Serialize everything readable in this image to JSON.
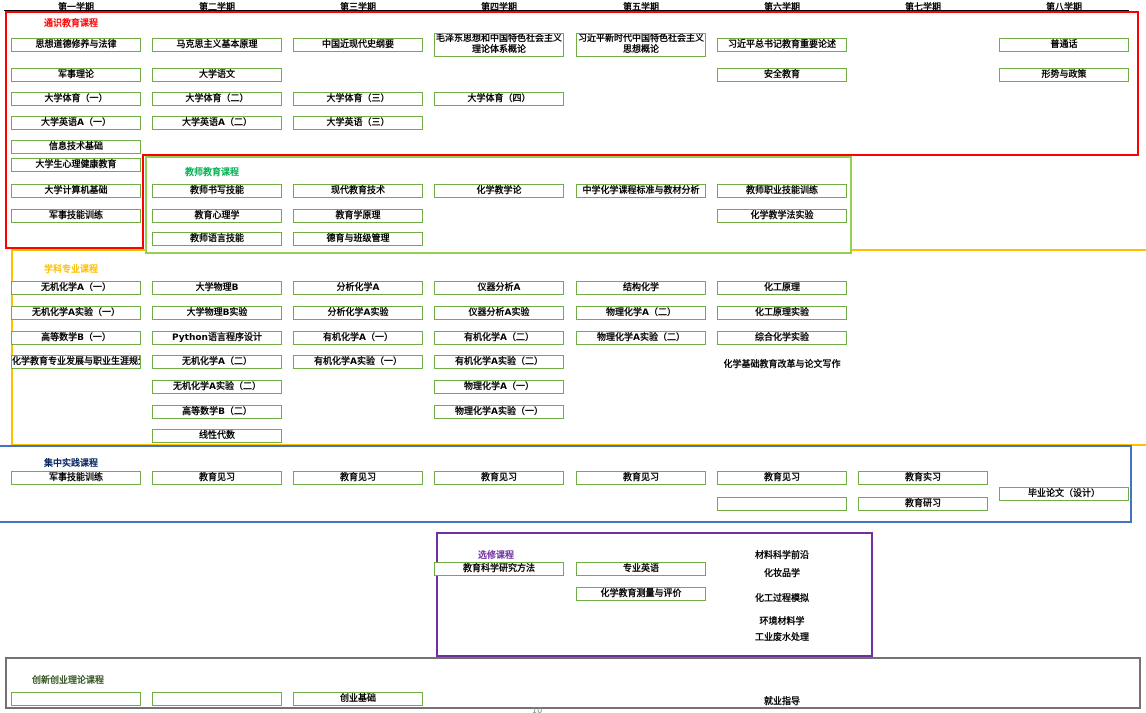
{
  "semesters": [
    "第一学期",
    "第二学期",
    "第三学期",
    "第四学期",
    "第五学期",
    "第六学期",
    "第七学期",
    "第八学期"
  ],
  "colors": {
    "general": "#ff0000",
    "teacher": "#92d050",
    "subject": "#ffc000",
    "practice": "#4472c4",
    "elective": "#7030a0",
    "innovation": "#767171",
    "cell_border": "#70ad47"
  },
  "sections": [
    {
      "id": "general",
      "title": "通识教育课程",
      "title_color": "#ff0000",
      "columns": [
        [
          "思想道德修养与法律",
          "军事理论",
          "大学体育（一）",
          "大学英语A（一）",
          "信息技术基础",
          "大学生心理健康教育",
          "大学计算机基础",
          "军事技能训练"
        ],
        [
          "马克思主义基本原理",
          "大学语文",
          "大学体育（二）",
          "大学英语A（二）"
        ],
        [
          "中国近现代史纲要",
          null,
          "大学体育（三）",
          "大学英语（三）"
        ],
        [
          {
            "text": "毛泽东思想和中国特色社会主义理论体系概论",
            "tall": true
          },
          null,
          "大学体育（四）"
        ],
        [
          {
            "text": "习近平新时代中国特色社会主义思想概论",
            "tall": true
          }
        ],
        [
          "习近平总书记教育重要论述",
          "安全教育"
        ],
        [],
        [
          "普通话",
          "形势与政策"
        ]
      ]
    },
    {
      "id": "teacher",
      "title": "教师教育课程",
      "title_color": "#00b050",
      "columns": [
        [],
        [
          "教师书写技能",
          "教育心理学",
          "教师语言技能"
        ],
        [
          "现代教育技术",
          "教育学原理",
          "德育与班级管理"
        ],
        [
          "化学教学论"
        ],
        [
          "中学化学课程标准与教材分析"
        ],
        [
          "教师职业技能训练",
          "化学教学法实验"
        ],
        [],
        []
      ]
    },
    {
      "id": "subject",
      "title": "学科专业课程",
      "title_color": "#ffc000",
      "columns": [
        [
          "无机化学A（一）",
          "无机化学A实验（一）",
          "高等数学B（一）",
          "化学教育专业发展与职业生涯规划"
        ],
        [
          "大学物理B",
          "大学物理B实验",
          "Python语言程序设计",
          "无机化学A（二）",
          "无机化学A实验（二）",
          "高等数学B（二）",
          "线性代数"
        ],
        [
          "分析化学A",
          "分析化学A实验",
          "有机化学A（一）",
          "有机化学A实验（一）"
        ],
        [
          "仪器分析A",
          "仪器分析A实验",
          "有机化学A（二）",
          "有机化学A实验（二）",
          "物理化学A（一）",
          "物理化学A实验（一）"
        ],
        [
          "结构化学",
          "物理化学A（二）",
          "物理化学A实验（二）"
        ],
        [
          "化工原理",
          "化工原理实验",
          "综合化学实验",
          {
            "text": "化学基础教育改革与论文写作",
            "plain": true
          }
        ],
        [],
        []
      ]
    },
    {
      "id": "practice",
      "title": "集中实践课程",
      "title_color": "#002060",
      "columns": [
        [
          "军事技能训练"
        ],
        [
          "教育见习"
        ],
        [
          "教育见习"
        ],
        [
          "教育见习"
        ],
        [
          "教育见习"
        ],
        [
          "教育见习",
          ""
        ],
        [
          "教育实习",
          "教育研习"
        ],
        [
          null,
          null,
          "毕业论文（设计）"
        ]
      ]
    },
    {
      "id": "elective",
      "title": "选修课程",
      "title_color": "#7030a0",
      "columns": [
        [],
        [],
        [],
        [
          "教育科学研究方法"
        ],
        [
          "专业英语",
          "化学教育测量与评价"
        ],
        [],
        [],
        []
      ],
      "notes": [
        "材料科学前沿",
        "化妆品学",
        "化工过程模拟",
        "环境材料学",
        "工业废水处理"
      ]
    },
    {
      "id": "innovation",
      "title": "创新创业理论课程",
      "title_color": "#375623",
      "columns": [
        [
          ""
        ],
        [
          ""
        ],
        [
          "创业基础"
        ],
        [],
        [],
        [
          {
            "text": "就业指导",
            "plain": true
          }
        ],
        [],
        []
      ]
    }
  ],
  "page_number": "10"
}
